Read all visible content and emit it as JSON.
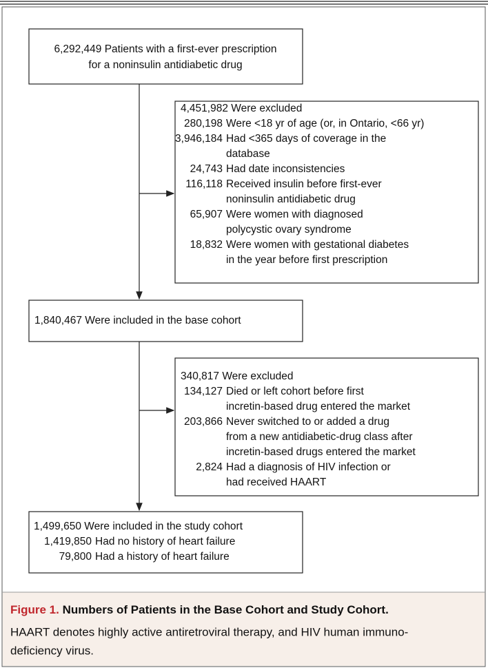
{
  "nodes": [
    {
      "lines": [
        "6,292,449 Patients with a first-ever prescription",
        "for a noninsulin antidiabetic drug"
      ]
    },
    {
      "header": "4,451,982 Were excluded",
      "items": [
        {
          "count": "280,198",
          "lines": [
            "Were <18 yr of age (or, in Ontario, <66 yr)"
          ]
        },
        {
          "count": "3,946,184",
          "lines": [
            "Had <365 days of coverage in the",
            "database"
          ]
        },
        {
          "count": "24,743",
          "lines": [
            "Had date inconsistencies"
          ]
        },
        {
          "count": "116,118",
          "lines": [
            "Received insulin before first-ever",
            "noninsulin antidiabetic drug"
          ]
        },
        {
          "count": "65,907",
          "lines": [
            "Were women with diagnosed",
            "polycystic ovary syndrome"
          ]
        },
        {
          "count": "18,832",
          "lines": [
            "Were women with gestational diabetes",
            "in the year before first prescription"
          ]
        }
      ]
    },
    {
      "lines": [
        "1,840,467 Were included in the base cohort"
      ]
    },
    {
      "header": "340,817 Were excluded",
      "items": [
        {
          "count": "134,127",
          "lines": [
            "Died or left cohort before first",
            "incretin-based drug entered the market"
          ]
        },
        {
          "count": "203,866",
          "lines": [
            "Never switched to or added a drug",
            "from a new antidiabetic-drug class after",
            "incretin-based drugs entered the market"
          ]
        },
        {
          "count": "2,824",
          "lines": [
            "Had a diagnosis of HIV infection or",
            "had received HAART"
          ]
        }
      ]
    },
    {
      "header": "1,499,650 Were included in the study cohort",
      "items": [
        {
          "count": "1,419,850",
          "lines": [
            "Had no history of heart failure"
          ]
        },
        {
          "count": "79,800",
          "lines": [
            "Had a history of heart failure"
          ]
        }
      ]
    }
  ],
  "caption": {
    "label": "Figure 1.",
    "title": "Numbers of Patients in the Base Cohort and Study Cohort.",
    "text": [
      "HAART denotes highly active antiretroviral therapy, and HIV human immuno-",
      "deficiency virus."
    ]
  }
}
